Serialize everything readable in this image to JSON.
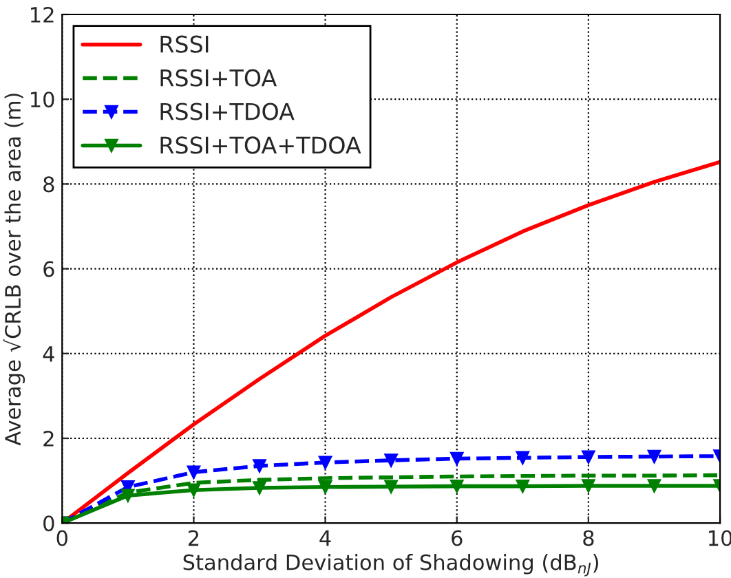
{
  "chart_data": {
    "type": "line",
    "xlabel": "Standard Deviation of Shadowing (dB$_{nJ}$)",
    "ylabel": "Average √CRLB over the area (m)",
    "x": [
      0,
      1,
      2,
      3,
      4,
      5,
      6,
      7,
      8,
      9,
      10
    ],
    "xlim": [
      0,
      10
    ],
    "xticks": [
      0,
      2,
      4,
      6,
      8,
      10
    ],
    "ylim": [
      0,
      12
    ],
    "yticks": [
      0,
      2,
      4,
      6,
      8,
      10,
      12
    ],
    "grid": true,
    "legend": "top left",
    "series": [
      {
        "name": "RSSI",
        "color": "#ff0000",
        "line_style": "solid",
        "marker": "none",
        "values": [
          0,
          1.18,
          2.33,
          3.4,
          4.42,
          5.33,
          6.15,
          6.88,
          7.5,
          8.05,
          8.52
        ]
      },
      {
        "name": "RSSI+TOA",
        "color": "#008000",
        "line_style": "dashed",
        "marker": "none",
        "values": [
          0,
          0.72,
          0.95,
          1.02,
          1.06,
          1.08,
          1.1,
          1.11,
          1.12,
          1.12,
          1.13
        ]
      },
      {
        "name": "RSSI+TDOA",
        "color": "#0000ff",
        "line_style": "dashed",
        "marker": "triangle",
        "values": [
          0,
          0.85,
          1.2,
          1.35,
          1.43,
          1.48,
          1.52,
          1.54,
          1.56,
          1.57,
          1.58
        ]
      },
      {
        "name": "RSSI+TOA+TDOA",
        "color": "#008000",
        "line_style": "solid",
        "marker": "triangle",
        "values": [
          0,
          0.65,
          0.78,
          0.83,
          0.85,
          0.86,
          0.87,
          0.87,
          0.88,
          0.88,
          0.88
        ]
      }
    ]
  }
}
